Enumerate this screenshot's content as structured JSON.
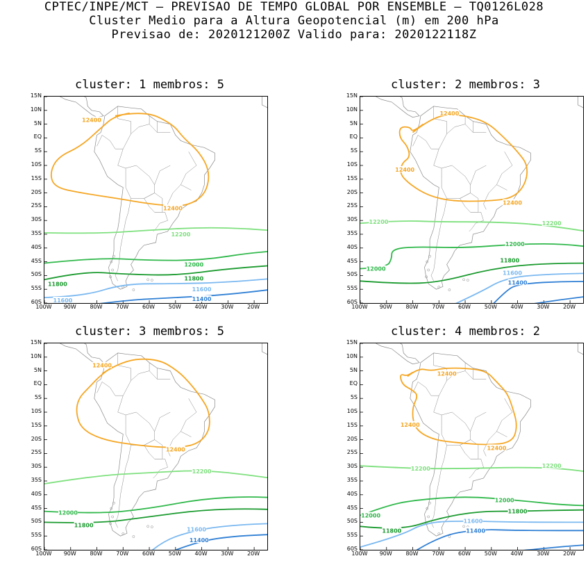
{
  "header": {
    "line1": "CPTEC/INPE/MCT – PREVISAO DE TEMPO GLOBAL POR ENSEMBLE – TQ0126L028",
    "line2": "Cluster Medio para a Altura Geopotencial (m) em 200 hPa",
    "line3": "Previsao de: 2020121200Z    Valido para: 2020122118Z"
  },
  "lat_labels": [
    "15N",
    "10N",
    "5N",
    "EQ",
    "5S",
    "10S",
    "15S",
    "20S",
    "25S",
    "30S",
    "35S",
    "40S",
    "45S",
    "50S",
    "55S",
    "60S"
  ],
  "lon_labels": [
    "100W",
    "90W",
    "80W",
    "70W",
    "60W",
    "50W",
    "40W",
    "30W",
    "20W"
  ],
  "colors": {
    "c12400": "#f5a623",
    "c12200": "#7ee07e",
    "c12000": "#2fb84a",
    "c11800": "#1a9a2e",
    "c11600": "#7ab8f0",
    "c11400": "#2f7fd4",
    "coast": "#888888"
  },
  "panels": [
    {
      "title": "cluster: 1   membros: 5",
      "labels": {
        "a": "12400",
        "b": "12400",
        "c": "12200",
        "d": "12000",
        "e": "11800",
        "f": "11800",
        "g": "11600",
        "h": "11600",
        "i": "11400"
      }
    },
    {
      "title": "cluster: 2   membros: 3",
      "labels": {
        "a": "12400",
        "b": "12400",
        "b2": "12400",
        "c": "12200",
        "c2": "12200",
        "d": "12000",
        "d2": "12000",
        "e": "11800",
        "g": "11600",
        "i": "11400"
      }
    },
    {
      "title": "cluster: 3   membros: 5",
      "labels": {
        "a": "12400",
        "b": "12400",
        "c": "12200",
        "d": "12000",
        "e": "11800",
        "g": "11600",
        "i": "11400"
      }
    },
    {
      "title": "cluster: 4   membros: 2",
      "labels": {
        "a": "12400",
        "b": "12400",
        "b2": "12400",
        "c": "12200",
        "c2": "12200",
        "d": "12000",
        "d2": "12000",
        "e": "11800",
        "e2": "11800",
        "g": "11600",
        "i": "11400"
      }
    }
  ]
}
